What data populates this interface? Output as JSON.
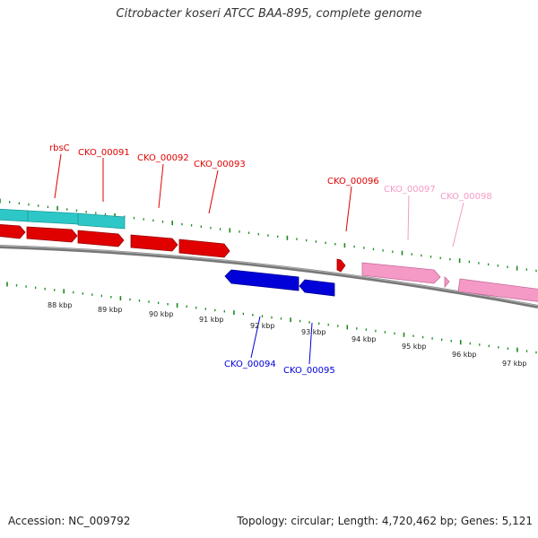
{
  "title": "Citrobacter koseri ATCC BAA-895, complete genome",
  "footer": {
    "accession": "Accession: NC_009792",
    "stats": "Topology: circular; Length: 4,720,462 bp; Genes: 5,121"
  },
  "colors": {
    "cyan": "#2ec7c7",
    "red": "#e00000",
    "blue": "#0000d8",
    "pink": "#f59ac7",
    "backbone": "#8a8a8a",
    "tick": "#1a8a1a"
  },
  "gene_labels": [
    {
      "id": "rbsC",
      "color": "red"
    },
    {
      "id": "CKO_00091",
      "color": "red"
    },
    {
      "id": "CKO_00092",
      "color": "red"
    },
    {
      "id": "CKO_00093",
      "color": "red"
    },
    {
      "id": "CKO_00096",
      "color": "red"
    },
    {
      "id": "CKO_00097",
      "color": "pink"
    },
    {
      "id": "CKO_00098",
      "color": "pink"
    },
    {
      "id": "CKO_00094",
      "color": "blue"
    },
    {
      "id": "CKO_00095",
      "color": "blue"
    }
  ],
  "scale_labels": [
    "88 kbp",
    "89 kbp",
    "90 kbp",
    "91 kbp",
    "92 kbp",
    "93 kbp",
    "94 kbp",
    "95 kbp",
    "96 kbp",
    "97 kbp"
  ]
}
